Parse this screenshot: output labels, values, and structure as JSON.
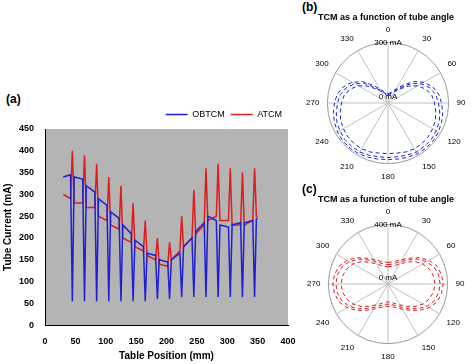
{
  "chart_data": [
    {
      "type": "line",
      "annotations": [
        "(a)"
      ],
      "xlabel": "Table Position (mm)",
      "ylabel": "Tube Current (mA)",
      "xlim": [
        0,
        400
      ],
      "xticks": [
        0,
        50,
        100,
        150,
        200,
        250,
        300,
        350,
        400
      ],
      "ylim": [
        0,
        450
      ],
      "yticks": [
        0,
        50,
        100,
        150,
        200,
        250,
        300,
        350,
        400,
        450
      ],
      "grid": false,
      "legend": "upper right",
      "x": [
        30,
        42,
        45,
        48,
        62,
        65,
        68,
        82,
        85,
        88,
        102,
        105,
        108,
        122,
        125,
        128,
        142,
        145,
        148,
        162,
        165,
        168,
        182,
        185,
        188,
        202,
        205,
        208,
        222,
        225,
        228,
        242,
        245,
        248,
        262,
        265,
        268,
        282,
        285,
        288,
        302,
        305,
        308,
        322,
        325,
        328,
        342,
        345,
        348,
        350
      ],
      "series": [
        {
          "name": "OBTCM",
          "color": "#1f1fd6",
          "line_style": "solid",
          "values": [
            340,
            345,
            55,
            340,
            335,
            55,
            320,
            305,
            55,
            290,
            275,
            55,
            260,
            245,
            55,
            230,
            210,
            55,
            195,
            180,
            55,
            165,
            160,
            60,
            150,
            145,
            60,
            150,
            165,
            65,
            180,
            200,
            65,
            215,
            235,
            65,
            250,
            240,
            65,
            230,
            225,
            65,
            230,
            235,
            65,
            235,
            240,
            65,
            245,
            245
          ]
        },
        {
          "name": "ATCM",
          "color": "#e01b1b",
          "line_style": "solid",
          "values": [
            300,
            290,
            400,
            280,
            280,
            390,
            270,
            270,
            370,
            250,
            240,
            340,
            230,
            220,
            320,
            200,
            190,
            280,
            180,
            170,
            240,
            160,
            150,
            200,
            140,
            135,
            190,
            150,
            170,
            250,
            180,
            200,
            310,
            210,
            230,
            360,
            240,
            250,
            370,
            240,
            240,
            360,
            230,
            230,
            350,
            230,
            240,
            360,
            250,
            250
          ]
        }
      ]
    },
    {
      "type": "polar",
      "annotations": [
        "(b)"
      ],
      "title": "TCM as a function of tube angle",
      "categories": [
        "0",
        null,
        null,
        "30",
        null,
        null,
        "60",
        null,
        null,
        "90",
        null,
        null,
        "120",
        null,
        null,
        "150",
        null,
        null,
        "180",
        null,
        null,
        "210",
        null,
        null,
        "240",
        null,
        null,
        "270",
        null,
        null,
        "300",
        null,
        null,
        "330",
        null,
        null
      ],
      "ylim": [
        0,
        300
      ],
      "yticks": [
        {
          "value": 0,
          "label": "0 mA"
        },
        {
          "value": 300,
          "label": "300 mA"
        }
      ],
      "grid": true,
      "series": [
        {
          "color": "#1f1fd6",
          "line_style": "dashed",
          "values": [
            40,
            45,
            55,
            70,
            100,
            150,
            190,
            220,
            240,
            250,
            260,
            270,
            275,
            280,
            280,
            280,
            275,
            270,
            270,
            270,
            275,
            280,
            280,
            280,
            275,
            270,
            260,
            250,
            240,
            220,
            190,
            150,
            100,
            70,
            55,
            45
          ]
        },
        {
          "color": "#1f1fd6",
          "line_style": "dashed",
          "values": [
            35,
            40,
            50,
            65,
            90,
            130,
            170,
            200,
            220,
            230,
            240,
            250,
            255,
            260,
            262,
            262,
            258,
            252,
            250,
            252,
            258,
            262,
            262,
            260,
            255,
            250,
            240,
            230,
            220,
            200,
            170,
            130,
            90,
            65,
            50,
            40
          ]
        },
        {
          "color": "#1f1fd6",
          "line_style": "dashed",
          "values": [
            45,
            50,
            60,
            80,
            115,
            165,
            205,
            235,
            255,
            265,
            275,
            282,
            288,
            292,
            292,
            290,
            286,
            282,
            280,
            282,
            286,
            290,
            292,
            292,
            288,
            282,
            275,
            265,
            255,
            235,
            205,
            165,
            115,
            80,
            60,
            50
          ]
        }
      ]
    },
    {
      "type": "polar",
      "annotations": [
        "(c)"
      ],
      "title": "TCM as a function of tube angle",
      "categories": [
        "0",
        null,
        null,
        "30",
        null,
        null,
        "60",
        null,
        null,
        "90",
        null,
        null,
        "120",
        null,
        null,
        "150",
        null,
        null,
        "180",
        null,
        null,
        "210",
        null,
        null,
        "240",
        null,
        null,
        "270",
        null,
        null,
        "300",
        null,
        null,
        "330",
        null,
        null
      ],
      "ylim": [
        0,
        400
      ],
      "yticks": [
        {
          "value": 0,
          "label": "0 mA"
        },
        {
          "value": 400,
          "label": "400 mA"
        }
      ],
      "grid": true,
      "series": [
        {
          "color": "#e01b1b",
          "line_style": "dashed",
          "values": [
            130,
            135,
            150,
            175,
            210,
            260,
            300,
            330,
            345,
            350,
            345,
            330,
            300,
            260,
            215,
            180,
            155,
            140,
            135,
            140,
            155,
            180,
            215,
            260,
            300,
            330,
            345,
            350,
            345,
            330,
            300,
            260,
            210,
            175,
            150,
            135
          ]
        },
        {
          "color": "#e01b1b",
          "line_style": "dashed",
          "values": [
            115,
            120,
            132,
            155,
            190,
            235,
            270,
            295,
            310,
            315,
            310,
            295,
            270,
            235,
            195,
            162,
            140,
            125,
            120,
            125,
            140,
            162,
            195,
            235,
            270,
            295,
            310,
            315,
            310,
            295,
            270,
            235,
            190,
            155,
            132,
            120
          ]
        },
        {
          "color": "#e01b1b",
          "line_style": "dashed",
          "values": [
            145,
            150,
            165,
            190,
            225,
            275,
            318,
            350,
            365,
            370,
            365,
            350,
            318,
            275,
            230,
            195,
            170,
            155,
            150,
            155,
            170,
            195,
            230,
            275,
            318,
            350,
            365,
            370,
            365,
            350,
            318,
            275,
            225,
            190,
            165,
            150
          ]
        }
      ]
    }
  ]
}
